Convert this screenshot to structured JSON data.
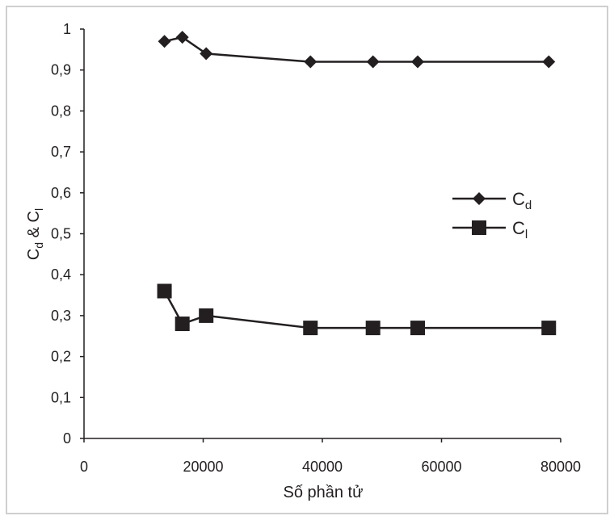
{
  "chart_data": {
    "type": "line",
    "xlabel": "Số phần tử",
    "ylabel": {
      "main1": "C",
      "sub1": "d",
      "mid": " & C",
      "sub2": "l"
    },
    "xlim": [
      0,
      80000
    ],
    "ylim": [
      0,
      1
    ],
    "x_ticks": [
      "0",
      "20000",
      "40000",
      "60000",
      "80000"
    ],
    "y_ticks": [
      "0",
      "0,1",
      "0,2",
      "0,3",
      "0,4",
      "0,5",
      "0,6",
      "0,7",
      "0,8",
      "0,9",
      "1"
    ],
    "grid": false,
    "legend_position": "right",
    "series": [
      {
        "name": "Cd",
        "name_main": "C",
        "name_sub": "d",
        "marker": "diamond",
        "color": "#231f20",
        "x": [
          13500,
          16500,
          20500,
          38000,
          48500,
          56000,
          78000
        ],
        "y": [
          0.97,
          0.98,
          0.94,
          0.92,
          0.92,
          0.92,
          0.92
        ]
      },
      {
        "name": "Cl",
        "name_main": "C",
        "name_sub": "l",
        "marker": "square",
        "color": "#231f20",
        "x": [
          13500,
          16500,
          20500,
          38000,
          48500,
          56000,
          78000
        ],
        "y": [
          0.36,
          0.28,
          0.3,
          0.27,
          0.27,
          0.27,
          0.27
        ]
      }
    ]
  }
}
